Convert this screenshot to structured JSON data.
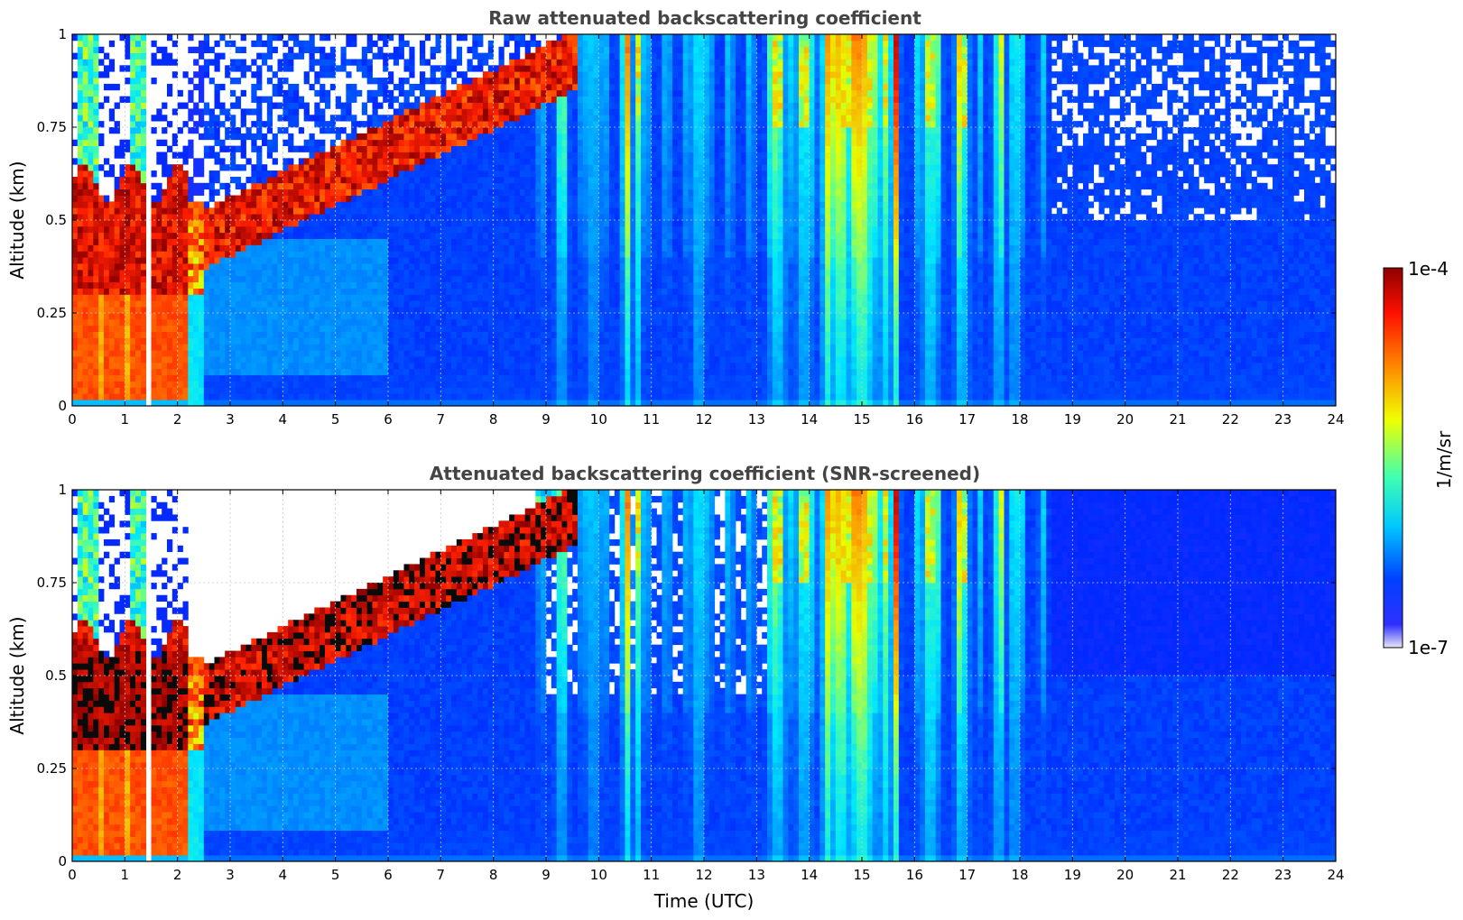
{
  "chart_data": [
    {
      "type": "heatmap",
      "title": "Raw attenuated backscattering coefficient",
      "xlabel": "",
      "ylabel": "Altitude (km)",
      "xlim": [
        0,
        24
      ],
      "ylim": [
        0,
        1
      ],
      "x_ticks": [
        "0",
        "1",
        "2",
        "3",
        "4",
        "5",
        "6",
        "7",
        "8",
        "9",
        "10",
        "11",
        "12",
        "13",
        "14",
        "15",
        "16",
        "17",
        "18",
        "19",
        "20",
        "21",
        "22",
        "23",
        "24"
      ],
      "y_ticks": [
        "0",
        "0.25",
        "0.5",
        "0.75",
        "1"
      ],
      "grid": true,
      "snr_screened": false
    },
    {
      "type": "heatmap",
      "title": "Attenuated backscattering coefficient (SNR-screened)",
      "xlabel": "Time (UTC)",
      "ylabel": "Altitude (km)",
      "xlim": [
        0,
        24
      ],
      "ylim": [
        0,
        1
      ],
      "x_ticks": [
        "0",
        "1",
        "2",
        "3",
        "4",
        "5",
        "6",
        "7",
        "8",
        "9",
        "10",
        "11",
        "12",
        "13",
        "14",
        "15",
        "16",
        "17",
        "18",
        "19",
        "20",
        "21",
        "22",
        "23",
        "24"
      ],
      "y_ticks": [
        "0",
        "0.25",
        "0.5",
        "0.75",
        "1"
      ],
      "grid": true,
      "snr_screened": true
    }
  ],
  "colorbar": {
    "label": "1/m/sr",
    "max_label": "1e-4",
    "min_label": "1e-7",
    "scale": "log",
    "range": [
      1e-07,
      0.0001
    ],
    "colormap": "jet",
    "colors": [
      "#e8e8f8",
      "#0000ff",
      "#00d0ff",
      "#40ff80",
      "#ffff00",
      "#ff6000",
      "#a00000"
    ]
  }
}
